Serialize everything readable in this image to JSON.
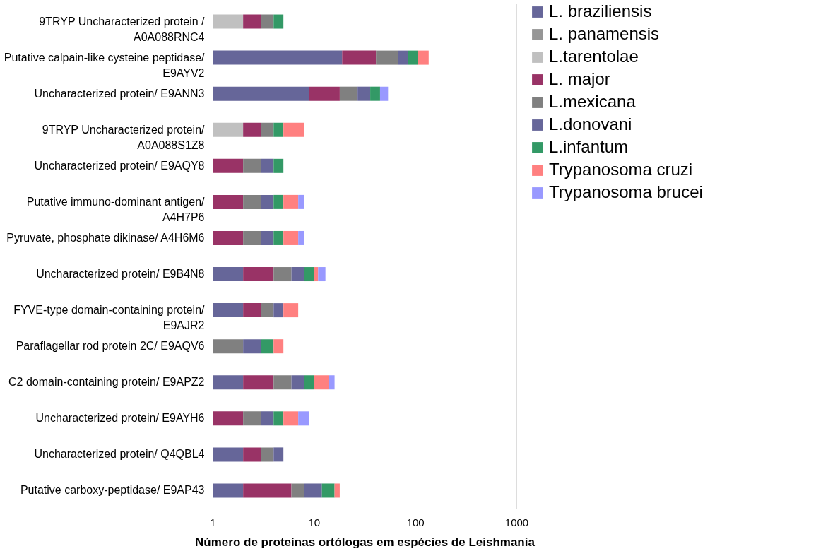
{
  "chart_data": {
    "type": "bar",
    "orientation": "horizontal",
    "stacked": true,
    "log": "x",
    "xlabel": "Número de proteínas ortólogas em espécies de Leishmania",
    "xlim": [
      1,
      1000
    ],
    "xticks": [
      1,
      10,
      100,
      1000
    ],
    "grid": false,
    "legend": "right",
    "categories": [
      "9TRYP Uncharacterized protein / A0A088RNC4",
      "Putative calpain-like cysteine peptidase/ E9AYV2",
      "Uncharacterized protein/ E9ANN3",
      "9TRYP Uncharacterized protein/ A0A088S1Z8",
      "Uncharacterized protein/ E9AQY8",
      "Putative immuno-dominant antigen/ A4H7P6",
      "Pyruvate, phosphate dikinase/ A4H6M6",
      "Uncharacterized protein/ E9B4N8",
      "FYVE-type domain-containing protein/ E9AJR2",
      "Paraflagellar rod protein 2C/ E9AQV6",
      "C2 domain-containing protein/ E9APZ2",
      "Uncharacterized protein/ E9AYH6",
      "Uncharacterized protein/ Q4QBL4",
      "Putative carboxy-peptidase/ E9AP43"
    ],
    "series": [
      {
        "name": "L. braziliensis",
        "color": "#666699",
        "values": [
          null,
          19,
          9,
          null,
          null,
          null,
          null,
          2,
          2,
          null,
          2,
          null,
          2,
          2
        ]
      },
      {
        "name": "L. panamensis",
        "color": "#969696",
        "values": [
          null,
          null,
          null,
          null,
          null,
          null,
          null,
          null,
          null,
          null,
          null,
          null,
          null,
          null
        ]
      },
      {
        "name": "L.tarentolae",
        "color": "#c0c0c0",
        "values": [
          2,
          null,
          null,
          2,
          null,
          null,
          null,
          null,
          null,
          null,
          null,
          null,
          null,
          null
        ]
      },
      {
        "name": "L. major",
        "color": "#993366",
        "values": [
          1,
          22,
          9,
          1,
          2,
          2,
          2,
          2,
          1,
          null,
          2,
          2,
          1,
          4
        ]
      },
      {
        "name": "L.mexicana",
        "color": "#808080",
        "values": [
          1,
          27,
          9,
          1,
          1,
          1,
          1,
          2,
          1,
          2,
          2,
          1,
          1,
          2
        ]
      },
      {
        "name": "L.donovani",
        "color": "#666699",
        "values": [
          null,
          17,
          9,
          null,
          1,
          1,
          1,
          2,
          1,
          1,
          2,
          1,
          1,
          4
        ]
      },
      {
        "name": "L.infantum",
        "color": "#339966",
        "values": [
          1,
          21,
          9,
          1,
          1,
          1,
          1,
          2,
          null,
          1,
          2,
          1,
          null,
          4
        ]
      },
      {
        "name": "Trypanosoma cruzi",
        "color": "#ff8080",
        "values": [
          null,
          30,
          null,
          3,
          null,
          2,
          2,
          1,
          2,
          1,
          4,
          2,
          null,
          2
        ]
      },
      {
        "name": "Trypanosoma brucei",
        "color": "#9999ff",
        "values": [
          null,
          null,
          9,
          null,
          null,
          1,
          1,
          2,
          null,
          null,
          2,
          2,
          null,
          null
        ]
      }
    ]
  }
}
